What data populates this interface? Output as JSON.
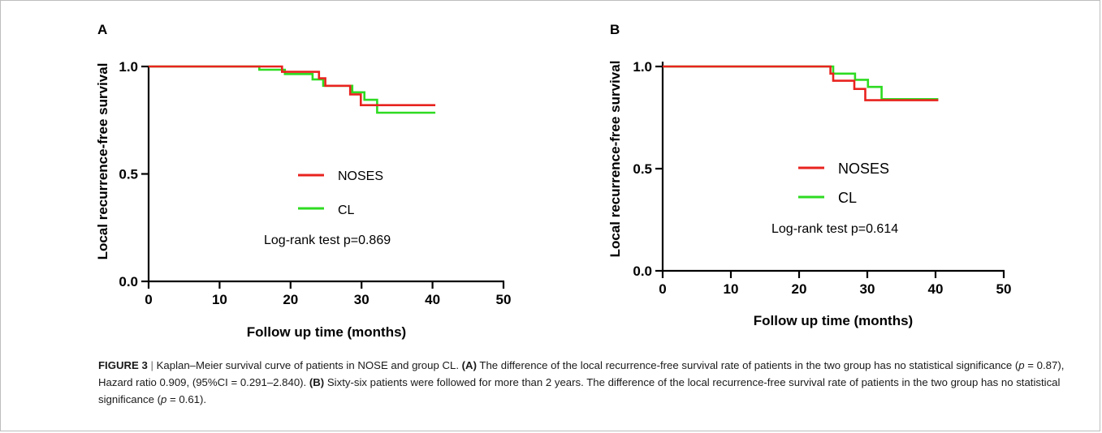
{
  "chart_data": [
    {
      "type": "line",
      "step": true,
      "panel_label": "A",
      "xlabel": "Follow up time (months)",
      "ylabel": "Local recurrence-free survival",
      "xlim": [
        0,
        50
      ],
      "ylim": [
        0,
        1.0
      ],
      "xticks": [
        "0",
        "10",
        "20",
        "30",
        "40",
        "50"
      ],
      "yticks": [
        "0.0",
        "0.5",
        "1.0"
      ],
      "legend_position": "center",
      "annotation": "Log-rank test p=0.869",
      "series": [
        {
          "name": "NOSES",
          "color": "#e8231f",
          "points": [
            [
              0,
              1.0
            ],
            [
              18.8,
              1.0
            ],
            [
              18.8,
              0.975
            ],
            [
              24.0,
              0.975
            ],
            [
              24.0,
              0.945
            ],
            [
              24.9,
              0.945
            ],
            [
              24.9,
              0.91
            ],
            [
              28.4,
              0.91
            ],
            [
              28.4,
              0.87
            ],
            [
              29.9,
              0.87
            ],
            [
              29.9,
              0.82
            ],
            [
              40.4,
              0.82
            ]
          ]
        },
        {
          "name": "CL",
          "color": "#2edb21",
          "points": [
            [
              0,
              1.0
            ],
            [
              15.6,
              1.0
            ],
            [
              15.6,
              0.985
            ],
            [
              19.2,
              0.985
            ],
            [
              19.2,
              0.965
            ],
            [
              23.1,
              0.965
            ],
            [
              23.1,
              0.94
            ],
            [
              24.6,
              0.94
            ],
            [
              24.6,
              0.91
            ],
            [
              28.7,
              0.91
            ],
            [
              28.7,
              0.88
            ],
            [
              30.4,
              0.88
            ],
            [
              30.4,
              0.845
            ],
            [
              32.2,
              0.845
            ],
            [
              32.2,
              0.785
            ],
            [
              40.4,
              0.785
            ]
          ]
        }
      ]
    },
    {
      "type": "line",
      "step": true,
      "panel_label": "B",
      "xlabel": "Follow up time (months)",
      "ylabel": "Local recurrence-free survival",
      "xlim": [
        0,
        50
      ],
      "ylim": [
        0,
        1.0
      ],
      "xticks": [
        "0",
        "10",
        "20",
        "30",
        "40",
        "50"
      ],
      "yticks": [
        "0.0",
        "0.5",
        "1.0"
      ],
      "legend_position": "center",
      "annotation": "Log-rank test p=0.614",
      "series": [
        {
          "name": "NOSES",
          "color": "#e8231f",
          "points": [
            [
              0,
              1.0
            ],
            [
              24.6,
              1.0
            ],
            [
              24.6,
              0.965
            ],
            [
              25.0,
              0.965
            ],
            [
              25.0,
              0.93
            ],
            [
              28.1,
              0.93
            ],
            [
              28.1,
              0.89
            ],
            [
              29.7,
              0.89
            ],
            [
              29.7,
              0.835
            ],
            [
              40.4,
              0.835
            ]
          ]
        },
        {
          "name": "CL",
          "color": "#2edb21",
          "points": [
            [
              0,
              1.0
            ],
            [
              25.0,
              1.0
            ],
            [
              25.0,
              0.965
            ],
            [
              28.2,
              0.965
            ],
            [
              28.2,
              0.935
            ],
            [
              30.1,
              0.935
            ],
            [
              30.1,
              0.9
            ],
            [
              32.1,
              0.9
            ],
            [
              32.1,
              0.84
            ],
            [
              40.4,
              0.84
            ]
          ]
        }
      ]
    }
  ],
  "caption": {
    "figure_label": "FIGURE 3",
    "separator": "|",
    "title": "Kaplan–Meier survival curve of patients in NOSE and group CL.",
    "a_label": "(A)",
    "a_text_1": "The difference of the local recurrence-free survival rate of patients in the two group has no statistical significance (",
    "a_p_symbol": "p",
    "a_text_2": "= 0.87), Hazard ratio 0.909, (95%CI = 0.291–2.840).",
    "b_label": "(B)",
    "b_text_1": "Sixty-six patients were followed for more than 2 years. The difference of the local recurrence-free survival rate of patients in the two group has no statistical significance (",
    "b_p_symbol": "p",
    "b_text_2": "= 0.61)."
  }
}
